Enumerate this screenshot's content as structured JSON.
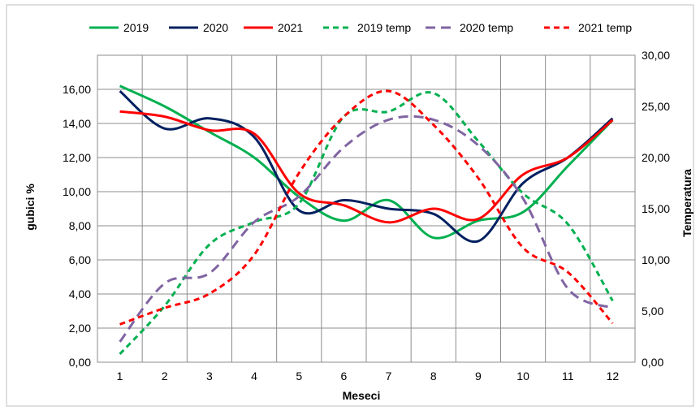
{
  "chart_data": {
    "type": "line",
    "xlabel": "Meseci",
    "ylabel": "gubici %",
    "y2label": "Temperatura",
    "x": [
      1,
      2,
      3,
      4,
      5,
      6,
      7,
      8,
      9,
      10,
      11,
      12
    ],
    "x_tick_labels": [
      "1",
      "2",
      "3",
      "4",
      "5",
      "6",
      "7",
      "8",
      "9",
      "10",
      "11",
      "12"
    ],
    "ylim": [
      0,
      18
    ],
    "y2lim": [
      0,
      30
    ],
    "y_tick_labels": [
      "0,00",
      "2,00",
      "4,00",
      "6,00",
      "8,00",
      "10,00",
      "12,00",
      "14,00",
      "16,00"
    ],
    "y2_tick_labels": [
      "0,00",
      "5,00",
      "10,00",
      "15,00",
      "20,00",
      "25,00",
      "30,00"
    ],
    "grid": true,
    "legend_position": "top",
    "series": [
      {
        "name": "2019",
        "axis": "left",
        "style": "solid",
        "color": "#00b050",
        "values": [
          16.2,
          15.0,
          13.5,
          12.0,
          9.7,
          8.3,
          9.5,
          7.3,
          8.3,
          8.8,
          11.5,
          14.2
        ]
      },
      {
        "name": "2020",
        "axis": "left",
        "style": "solid",
        "color": "#002060",
        "values": [
          15.9,
          13.7,
          14.3,
          13.2,
          8.9,
          9.5,
          9.0,
          8.7,
          7.1,
          10.5,
          12.0,
          14.3
        ]
      },
      {
        "name": "2021",
        "axis": "left",
        "style": "solid",
        "color": "#ff0000",
        "values": [
          14.7,
          14.4,
          13.6,
          13.4,
          9.9,
          9.2,
          8.2,
          9.0,
          8.4,
          11.0,
          12.0,
          14.2
        ]
      },
      {
        "name": "2019 temp",
        "axis": "right",
        "style": "dashed",
        "color": "#00b050",
        "values": [
          0.8,
          5.5,
          11.5,
          13.7,
          15.5,
          24.0,
          24.5,
          26.3,
          21.6,
          16.5,
          13.5,
          6.0
        ]
      },
      {
        "name": "2020 temp",
        "axis": "right",
        "style": "dashed",
        "color": "#8064a2",
        "values": [
          2.0,
          7.7,
          8.7,
          13.7,
          16.2,
          21.0,
          23.7,
          23.7,
          21.2,
          16.0,
          7.2,
          5.3
        ]
      },
      {
        "name": "2021 temp",
        "axis": "right",
        "style": "dashed",
        "color": "#ff0000",
        "values": [
          3.7,
          5.3,
          6.7,
          10.5,
          18.5,
          24.0,
          26.5,
          23.2,
          18.0,
          11.2,
          8.8,
          3.8
        ]
      }
    ]
  }
}
